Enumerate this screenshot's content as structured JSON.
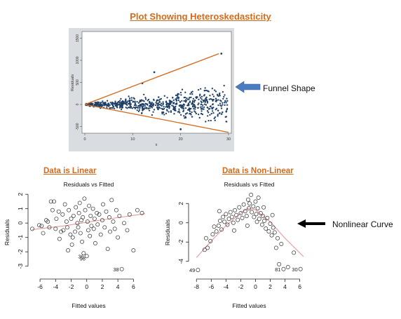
{
  "main_title": "Plot Showing Heteroskedasticity",
  "callouts": {
    "funnel": "Funnel Shape",
    "curve": "Nonlinear Curve"
  },
  "section_titles": {
    "linear": "Data is Linear",
    "nonlinear": "Data is Non-Linear"
  },
  "colors": {
    "accent": "#d46a1a",
    "funnel_points": "#1e3f66",
    "arrow_blue": "#4a7cc0",
    "loess": "#e69a9a",
    "panel_bg": "#d9dce0"
  },
  "chart_data": [
    {
      "type": "scatter",
      "title": "",
      "xlabel": "x",
      "ylabel": "Residuals",
      "xticks": [
        0,
        10,
        20,
        30
      ],
      "yticks": [
        -500,
        0,
        500,
        1000,
        1500
      ],
      "xlim": [
        0,
        30
      ],
      "ylim": [
        -650,
        1650
      ],
      "envelope": {
        "upper": [
          [
            0,
            0
          ],
          [
            28,
            1150
          ]
        ],
        "lower": [
          [
            0,
            0
          ],
          [
            30,
            -630
          ]
        ]
      },
      "highlight_points": [
        {
          "x": 28.5,
          "y": 1150
        },
        {
          "x": 14.5,
          "y": 730
        },
        {
          "x": 12,
          "y": 480
        },
        {
          "x": 20,
          "y": -560
        }
      ],
      "series": [
        {
          "pattern": "fan-shaped spread increasing with x",
          "approx_count": 700
        }
      ]
    },
    {
      "type": "scatter",
      "title": "Residuals vs Fitted",
      "xlabel": "Fitted values",
      "ylabel": "Residuals",
      "xticks": [
        -6,
        -4,
        -2,
        0,
        2,
        4,
        6
      ],
      "yticks": [
        -3,
        -2,
        -1,
        0,
        1,
        2
      ],
      "xlim": [
        -7,
        7.5
      ],
      "ylim": [
        -3.6,
        2.3
      ],
      "points": [
        {
          "x": -7,
          "y": -0.4
        },
        {
          "x": -6.1,
          "y": -0.15
        },
        {
          "x": -5.8,
          "y": -0.2
        },
        {
          "x": -5.6,
          "y": -0.7
        },
        {
          "x": -5.2,
          "y": 0.2
        },
        {
          "x": -4.8,
          "y": -0.3
        },
        {
          "x": -4.6,
          "y": 1.5
        },
        {
          "x": -4.4,
          "y": 0.9
        },
        {
          "x": -4.2,
          "y": 1.5
        },
        {
          "x": -4.0,
          "y": -0.4
        },
        {
          "x": -3.9,
          "y": 0.3
        },
        {
          "x": -3.6,
          "y": 0.8
        },
        {
          "x": -3.5,
          "y": -1.1
        },
        {
          "x": -3.3,
          "y": -0.6
        },
        {
          "x": -3.1,
          "y": 0.6
        },
        {
          "x": -3.0,
          "y": -0.5
        },
        {
          "x": -2.8,
          "y": 1.3
        },
        {
          "x": -2.6,
          "y": 0.1
        },
        {
          "x": -2.5,
          "y": -0.3
        },
        {
          "x": -2.4,
          "y": -1.9
        },
        {
          "x": -2.3,
          "y": 0.9
        },
        {
          "x": -2.1,
          "y": -0.8
        },
        {
          "x": -2.0,
          "y": 0.3
        },
        {
          "x": -1.8,
          "y": -1.0
        },
        {
          "x": -1.7,
          "y": 0.5
        },
        {
          "x": -1.5,
          "y": -0.6
        },
        {
          "x": -1.4,
          "y": 1.1
        },
        {
          "x": -1.2,
          "y": 0.0
        },
        {
          "x": -1.1,
          "y": -0.3
        },
        {
          "x": -1.0,
          "y": 0.7
        },
        {
          "x": -0.9,
          "y": 1.4
        },
        {
          "x": -0.8,
          "y": -0.7
        },
        {
          "x": -0.7,
          "y": 0.2
        },
        {
          "x": -0.6,
          "y": -1.3
        },
        {
          "x": -0.5,
          "y": 0.4
        },
        {
          "x": -0.4,
          "y": -2.1
        },
        {
          "x": -0.3,
          "y": 1.7
        },
        {
          "x": -0.2,
          "y": 0.9
        },
        {
          "x": 0.0,
          "y": -2.3
        },
        {
          "x": 0.1,
          "y": 0.1
        },
        {
          "x": 0.2,
          "y": -0.5
        },
        {
          "x": 0.3,
          "y": 1.2
        },
        {
          "x": 0.4,
          "y": -0.9
        },
        {
          "x": 0.5,
          "y": 0.5
        },
        {
          "x": 0.6,
          "y": -0.2
        },
        {
          "x": 0.8,
          "y": 1.0
        },
        {
          "x": 0.9,
          "y": -0.4
        },
        {
          "x": 1.0,
          "y": 0.3
        },
        {
          "x": 1.1,
          "y": -1.4
        },
        {
          "x": 1.3,
          "y": 0.7
        },
        {
          "x": 1.4,
          "y": -0.1
        },
        {
          "x": 1.6,
          "y": 0.6
        },
        {
          "x": 1.8,
          "y": -0.8
        },
        {
          "x": 2.0,
          "y": 0.2
        },
        {
          "x": 2.1,
          "y": 1.3
        },
        {
          "x": 2.3,
          "y": -0.3
        },
        {
          "x": 2.5,
          "y": 0.8
        },
        {
          "x": 2.7,
          "y": -1.8
        },
        {
          "x": 2.9,
          "y": 0.4
        },
        {
          "x": 3.0,
          "y": -0.6
        },
        {
          "x": 3.2,
          "y": 1.6
        },
        {
          "x": 3.4,
          "y": 0.1
        },
        {
          "x": 3.6,
          "y": -0.4
        },
        {
          "x": 3.8,
          "y": 0.9
        },
        {
          "x": 4.0,
          "y": -1.0
        },
        {
          "x": 4.2,
          "y": 0.5
        },
        {
          "x": 4.5,
          "y": -3.2
        },
        {
          "x": 4.8,
          "y": 0.0
        },
        {
          "x": 5.2,
          "y": -0.5
        },
        {
          "x": 5.5,
          "y": 0.6
        },
        {
          "x": 6.0,
          "y": -1.9
        },
        {
          "x": 6.5,
          "y": 0.9
        },
        {
          "x": 7.1,
          "y": 0.7
        },
        {
          "x": -5.0,
          "y": 0.1
        },
        {
          "x": -1.9,
          "y": -1.5
        }
      ],
      "point_labels": [
        {
          "text": "38",
          "x": 4.5,
          "y": -3.2
        },
        {
          "text": "36",
          "x": 0.0,
          "y": -2.3
        },
        {
          "text": "98",
          "x": 0.2,
          "y": -2.45
        }
      ],
      "smoother": {
        "color": "#e69a9a",
        "x": [
          -7,
          -3,
          0,
          3,
          7.5
        ],
        "y": [
          -0.45,
          -0.2,
          0.05,
          0.3,
          0.65
        ]
      }
    },
    {
      "type": "scatter",
      "title": "Residuals vs Fitted",
      "xlabel": "Fitted values",
      "ylabel": "Residuals",
      "xticks": [
        -8,
        -6,
        -4,
        -2,
        0,
        2,
        4,
        6
      ],
      "yticks": [
        -4,
        -2,
        0,
        2
      ],
      "xlim": [
        -8.5,
        6.8
      ],
      "ylim": [
        -5.4,
        3.4
      ],
      "points": [
        {
          "x": -7.8,
          "y": -4.9
        },
        {
          "x": -6.9,
          "y": -2.8
        },
        {
          "x": -6.5,
          "y": -2.6
        },
        {
          "x": -6.1,
          "y": -1.9
        },
        {
          "x": -5.8,
          "y": -1.2
        },
        {
          "x": -5.6,
          "y": -0.4
        },
        {
          "x": -5.3,
          "y": -0.9
        },
        {
          "x": -5.0,
          "y": -0.3
        },
        {
          "x": -4.8,
          "y": 0.2
        },
        {
          "x": -4.6,
          "y": -0.7
        },
        {
          "x": -4.4,
          "y": 0.6
        },
        {
          "x": -4.2,
          "y": 0.1
        },
        {
          "x": -4.0,
          "y": 0.9
        },
        {
          "x": -3.8,
          "y": -0.2
        },
        {
          "x": -3.6,
          "y": 0.4
        },
        {
          "x": -3.4,
          "y": 1.1
        },
        {
          "x": -3.2,
          "y": 0.6
        },
        {
          "x": -3.0,
          "y": 0.0
        },
        {
          "x": -2.8,
          "y": 1.3
        },
        {
          "x": -2.6,
          "y": 0.8
        },
        {
          "x": -2.4,
          "y": 0.3
        },
        {
          "x": -2.2,
          "y": 1.6
        },
        {
          "x": -2.0,
          "y": 1.0
        },
        {
          "x": -1.8,
          "y": 0.5
        },
        {
          "x": -1.6,
          "y": 1.9
        },
        {
          "x": -1.4,
          "y": 1.2
        },
        {
          "x": -1.2,
          "y": 0.7
        },
        {
          "x": -1.0,
          "y": 2.4
        },
        {
          "x": -0.9,
          "y": 1.5
        },
        {
          "x": -0.8,
          "y": 2.0
        },
        {
          "x": -0.6,
          "y": 2.9
        },
        {
          "x": -0.5,
          "y": 1.1
        },
        {
          "x": -0.3,
          "y": 1.7
        },
        {
          "x": -0.2,
          "y": 0.6
        },
        {
          "x": 0.0,
          "y": 2.2
        },
        {
          "x": 0.1,
          "y": 0.9
        },
        {
          "x": 0.2,
          "y": 0.1
        },
        {
          "x": 0.3,
          "y": 1.5
        },
        {
          "x": 0.5,
          "y": 0.4
        },
        {
          "x": 0.7,
          "y": 1.0
        },
        {
          "x": 0.9,
          "y": -0.2
        },
        {
          "x": 1.0,
          "y": 0.7
        },
        {
          "x": 1.2,
          "y": 0.2
        },
        {
          "x": 1.4,
          "y": -0.6
        },
        {
          "x": 1.6,
          "y": 0.5
        },
        {
          "x": 1.8,
          "y": -0.9
        },
        {
          "x": 2.0,
          "y": -0.1
        },
        {
          "x": 2.2,
          "y": -1.3
        },
        {
          "x": 2.4,
          "y": -0.5
        },
        {
          "x": 2.6,
          "y": -1.0
        },
        {
          "x": 2.8,
          "y": -2.6
        },
        {
          "x": 3.0,
          "y": -1.6
        },
        {
          "x": 3.2,
          "y": -4.3
        },
        {
          "x": 3.5,
          "y": -2.2
        },
        {
          "x": 3.8,
          "y": -4.8
        },
        {
          "x": 4.4,
          "y": -4.6
        },
        {
          "x": 5.2,
          "y": -3.1
        },
        {
          "x": 6.1,
          "y": -4.8
        },
        {
          "x": -6.7,
          "y": -1.6
        },
        {
          "x": -1.1,
          "y": -0.3
        },
        {
          "x": 0.4,
          "y": 2.6
        },
        {
          "x": -2.9,
          "y": -0.8
        },
        {
          "x": 1.1,
          "y": 1.6
        },
        {
          "x": -4.9,
          "y": 1.2
        },
        {
          "x": 2.3,
          "y": 0.8
        }
      ],
      "point_labels": [
        {
          "text": "49",
          "x": -7.8,
          "y": -4.9
        },
        {
          "text": "81",
          "x": 3.8,
          "y": -4.8
        },
        {
          "text": "30",
          "x": 6.1,
          "y": -4.8
        }
      ],
      "smoother": {
        "color": "#e69a9a",
        "x": [
          -8,
          -6,
          -4,
          -2,
          -1,
          0,
          2,
          4,
          6.5
        ],
        "y": [
          -3.6,
          -1.9,
          -0.3,
          1.0,
          1.5,
          1.35,
          0.1,
          -1.6,
          -3.5
        ]
      }
    }
  ]
}
